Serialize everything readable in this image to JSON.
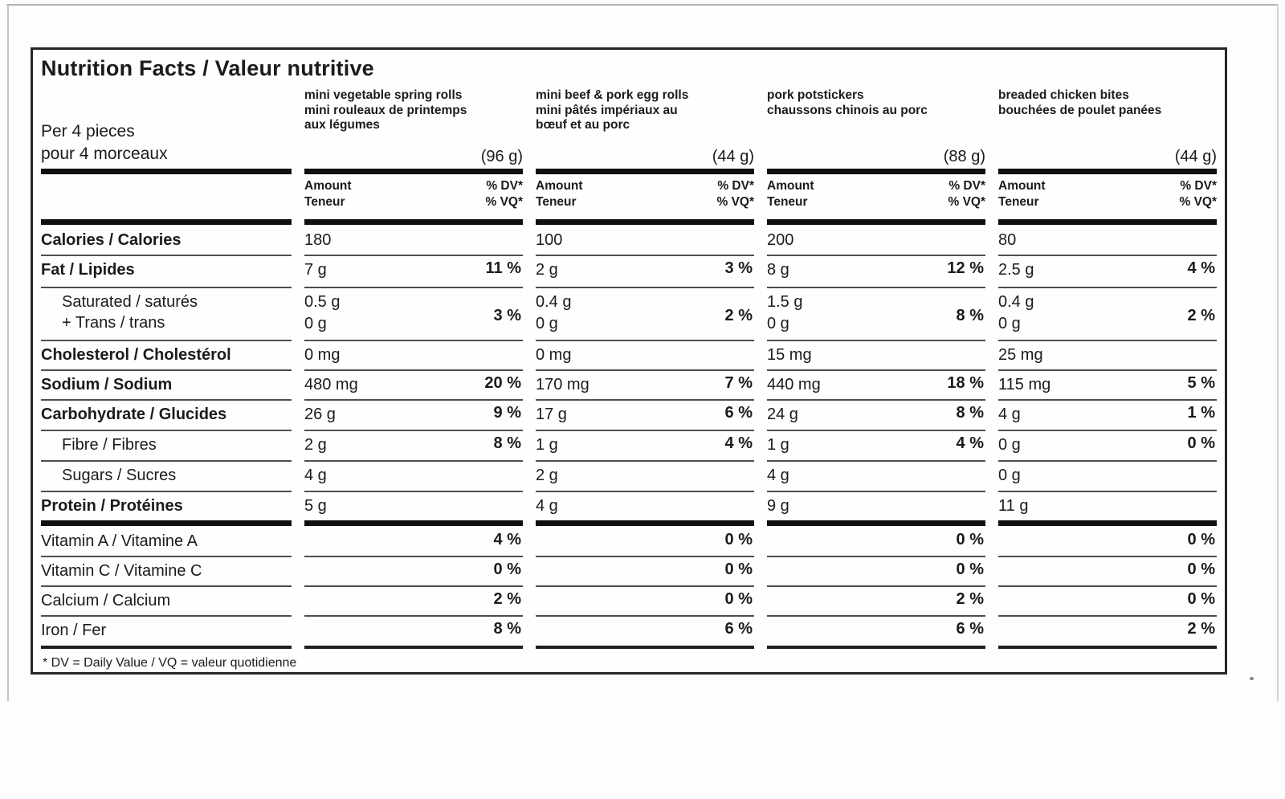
{
  "title": "Nutrition Facts / Valeur nutritive",
  "serving": "Per 4 pieces\npour 4 morceaux",
  "footnote": "* DV = Daily Value / VQ = valeur quotidienne",
  "column_headers": {
    "amount": "Amount\nTeneur",
    "dv": "% DV*\n% VQ*"
  },
  "products": [
    {
      "name": "mini vegetable spring rolls\nmini rouleaux de printemps\naux légumes",
      "weight": "(96 g)"
    },
    {
      "name": "mini beef & pork egg rolls\nmini pâtés impériaux au\nbœuf et au porc",
      "weight": "(44 g)"
    },
    {
      "name": "pork potstickers\nchaussons chinois au porc",
      "weight": "(88 g)"
    },
    {
      "name": "breaded chicken bites\nbouchées de poulet panées",
      "weight": "(44 g)"
    }
  ],
  "rows": [
    {
      "id": "calories",
      "section": "main",
      "style": "main",
      "label": "Calories / Calories",
      "values": [
        {
          "amount": "180",
          "dv": ""
        },
        {
          "amount": "100",
          "dv": ""
        },
        {
          "amount": "200",
          "dv": ""
        },
        {
          "amount": "80",
          "dv": ""
        }
      ]
    },
    {
      "id": "fat",
      "section": "main",
      "style": "main",
      "label": "Fat / Lipides",
      "values": [
        {
          "amount": "7 g",
          "dv": "11 %"
        },
        {
          "amount": "2 g",
          "dv": "3 %"
        },
        {
          "amount": "8 g",
          "dv": "12 %"
        },
        {
          "amount": "2.5 g",
          "dv": "4 %"
        }
      ]
    },
    {
      "id": "saturated-trans",
      "section": "main",
      "style": "sub",
      "label": "Saturated / saturés\n+ Trans / trans",
      "values": [
        {
          "amount": "0.5 g\n0 g",
          "dv": "3 %"
        },
        {
          "amount": "0.4 g\n0 g",
          "dv": "2 %"
        },
        {
          "amount": "1.5 g\n0 g",
          "dv": "8 %"
        },
        {
          "amount": "0.4 g\n0 g",
          "dv": "2 %"
        }
      ]
    },
    {
      "id": "cholesterol",
      "section": "main",
      "style": "main",
      "label": "Cholesterol / Cholestérol",
      "values": [
        {
          "amount": "0 mg",
          "dv": ""
        },
        {
          "amount": "0 mg",
          "dv": ""
        },
        {
          "amount": "15 mg",
          "dv": ""
        },
        {
          "amount": "25 mg",
          "dv": ""
        }
      ]
    },
    {
      "id": "sodium",
      "section": "main",
      "style": "main",
      "label": "Sodium / Sodium",
      "values": [
        {
          "amount": "480 mg",
          "dv": "20 %"
        },
        {
          "amount": "170 mg",
          "dv": "7 %"
        },
        {
          "amount": "440 mg",
          "dv": "18 %"
        },
        {
          "amount": "115 mg",
          "dv": "5 %"
        }
      ]
    },
    {
      "id": "carbohydrate",
      "section": "main",
      "style": "main",
      "label": "Carbohydrate / Glucides",
      "values": [
        {
          "amount": "26 g",
          "dv": "9 %"
        },
        {
          "amount": "17 g",
          "dv": "6 %"
        },
        {
          "amount": "24 g",
          "dv": "8 %"
        },
        {
          "amount": "4 g",
          "dv": "1 %"
        }
      ]
    },
    {
      "id": "fibre",
      "section": "main",
      "style": "sub",
      "label": "Fibre / Fibres",
      "values": [
        {
          "amount": "2 g",
          "dv": "8 %"
        },
        {
          "amount": "1 g",
          "dv": "4 %"
        },
        {
          "amount": "1 g",
          "dv": "4 %"
        },
        {
          "amount": "0 g",
          "dv": "0 %"
        }
      ]
    },
    {
      "id": "sugars",
      "section": "main",
      "style": "sub",
      "label": "Sugars / Sucres",
      "values": [
        {
          "amount": "4 g",
          "dv": ""
        },
        {
          "amount": "2 g",
          "dv": ""
        },
        {
          "amount": "4 g",
          "dv": ""
        },
        {
          "amount": "0 g",
          "dv": ""
        }
      ]
    },
    {
      "id": "protein",
      "section": "main",
      "style": "main",
      "label": "Protein / Protéines",
      "values": [
        {
          "amount": "5 g",
          "dv": ""
        },
        {
          "amount": "4 g",
          "dv": ""
        },
        {
          "amount": "9 g",
          "dv": ""
        },
        {
          "amount": "11 g",
          "dv": ""
        }
      ]
    },
    {
      "id": "vitamin-a",
      "section": "micro",
      "style": "plain",
      "label": "Vitamin A / Vitamine A",
      "values": [
        {
          "amount": "",
          "dv": "4 %"
        },
        {
          "amount": "",
          "dv": "0 %"
        },
        {
          "amount": "",
          "dv": "0 %"
        },
        {
          "amount": "",
          "dv": "0 %"
        }
      ]
    },
    {
      "id": "vitamin-c",
      "section": "micro",
      "style": "plain",
      "label": "Vitamin C / Vitamine C",
      "values": [
        {
          "amount": "",
          "dv": "0 %"
        },
        {
          "amount": "",
          "dv": "0 %"
        },
        {
          "amount": "",
          "dv": "0 %"
        },
        {
          "amount": "",
          "dv": "0 %"
        }
      ]
    },
    {
      "id": "calcium",
      "section": "micro",
      "style": "plain",
      "label": "Calcium / Calcium",
      "values": [
        {
          "amount": "",
          "dv": "2 %"
        },
        {
          "amount": "",
          "dv": "0 %"
        },
        {
          "amount": "",
          "dv": "2 %"
        },
        {
          "amount": "",
          "dv": "0 %"
        }
      ]
    },
    {
      "id": "iron",
      "section": "micro",
      "style": "plain",
      "label": "Iron / Fer",
      "values": [
        {
          "amount": "",
          "dv": "8 %"
        },
        {
          "amount": "",
          "dv": "6 %"
        },
        {
          "amount": "",
          "dv": "6 %"
        },
        {
          "amount": "",
          "dv": "2 %"
        }
      ]
    }
  ]
}
